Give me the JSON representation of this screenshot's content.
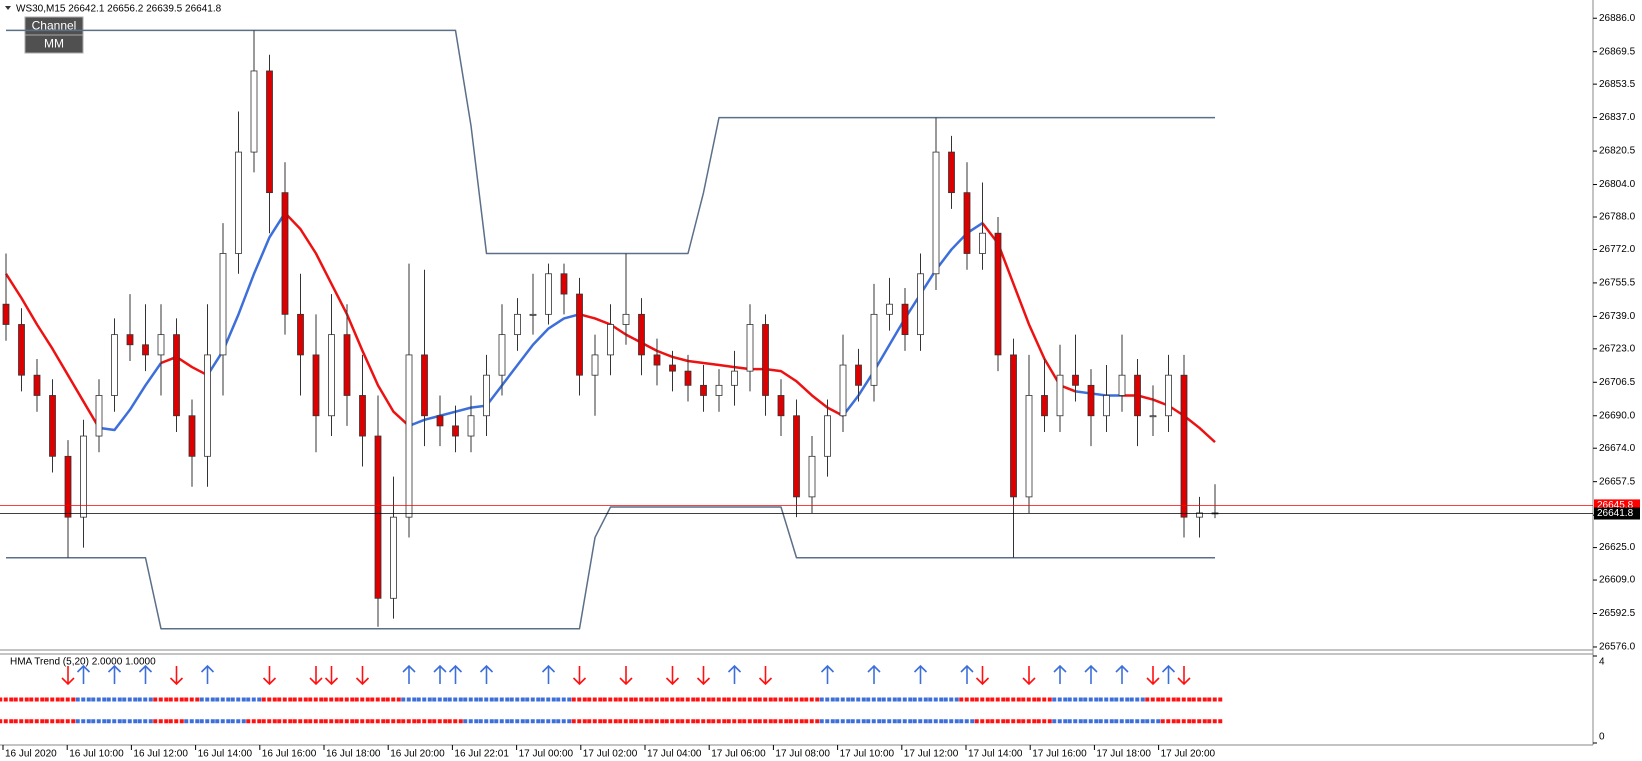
{
  "chart_data": {
    "type": "candlestick",
    "title": "WS30,M15  26642.1 26656.2 26639.5 26641.8",
    "buttons": [
      "Channel",
      "MM"
    ],
    "x_labels": [
      "16 Jul 2020",
      "16 Jul 10:00",
      "16 Jul 12:00",
      "16 Jul 14:00",
      "16 Jul 16:00",
      "16 Jul 18:00",
      "16 Jul 20:00",
      "16 Jul 22:01",
      "17 Jul 00:00",
      "17 Jul 02:00",
      "17 Jul 04:00",
      "17 Jul 06:00",
      "17 Jul 08:00",
      "17 Jul 10:00",
      "17 Jul 12:00",
      "17 Jul 14:00",
      "17 Jul 16:00",
      "17 Jul 18:00",
      "17 Jul 20:00"
    ],
    "ylim": [
      26575,
      26894
    ],
    "yticks": [
      {
        "value": 26886,
        "label": "26886.0"
      },
      {
        "value": 26869.5,
        "label": "26869.5"
      },
      {
        "value": 26853.5,
        "label": "26853.5"
      },
      {
        "value": 26837,
        "label": "26837.0"
      },
      {
        "value": 26820.5,
        "label": "26820.5"
      },
      {
        "value": 26804,
        "label": "26804.0"
      },
      {
        "value": 26788,
        "label": "26788.0"
      },
      {
        "value": 26772,
        "label": "26772.0"
      },
      {
        "value": 26755.5,
        "label": "26755.5"
      },
      {
        "value": 26739,
        "label": "26739.0"
      },
      {
        "value": 26723,
        "label": "26723.0"
      },
      {
        "value": 26706.5,
        "label": "26706.5"
      },
      {
        "value": 26690,
        "label": "26690.0"
      },
      {
        "value": 26674,
        "label": "26674.0"
      },
      {
        "value": 26657.5,
        "label": "26657.5"
      },
      {
        "value": 26641,
        "label": "26641.0"
      },
      {
        "value": 26625,
        "label": "26625.0"
      },
      {
        "value": 26609,
        "label": "26609.0"
      },
      {
        "value": 26592.5,
        "label": "26592.5"
      },
      {
        "value": 26576,
        "label": "26576.0"
      }
    ],
    "up_color": "#ffffff",
    "down_color": "#dd0000",
    "wick_color": "#333333",
    "open": [
      26745,
      26735,
      26710,
      26700,
      26670,
      26640,
      26680,
      26700,
      26730,
      26725,
      26720,
      26730,
      26690,
      26670,
      26720,
      26770,
      26820,
      26860,
      26800,
      26740,
      26720,
      26690,
      26730,
      26700,
      26680,
      26600,
      26640,
      26720,
      26690,
      26685,
      26680,
      26690,
      26710,
      26730,
      26740,
      26740,
      26760,
      26750,
      26710,
      26720,
      26735,
      26740,
      26720,
      26715,
      26712,
      26705,
      26700,
      26705,
      26712,
      26735,
      26700,
      26690,
      26650,
      26670,
      26690,
      26715,
      26705,
      26740,
      26745,
      26730,
      26760,
      26820,
      26800,
      26770,
      26780,
      26720,
      26650,
      26700,
      26690,
      26710,
      26705,
      26690,
      26700,
      26710,
      26690,
      26690,
      26710,
      26640,
      26642.1
    ],
    "high": [
      26770,
      26743,
      26718,
      26708,
      26678,
      26688,
      26708,
      26738,
      26750,
      26745,
      26745,
      26738,
      26698,
      26745,
      26785,
      26840,
      26880,
      26868,
      26815,
      26760,
      26740,
      26750,
      26745,
      26720,
      26700,
      26660,
      26765,
      26762,
      26700,
      26695,
      26700,
      26720,
      26745,
      26748,
      26760,
      26765,
      26765,
      26758,
      26730,
      26745,
      26770,
      26748,
      26728,
      26722,
      26720,
      26715,
      26713,
      26722,
      26745,
      26740,
      26708,
      26698,
      26680,
      26698,
      26730,
      26723,
      26755,
      26758,
      26753,
      26770,
      26837,
      26828,
      26815,
      26805,
      26788,
      26728,
      26720,
      26718,
      26725,
      26730,
      26713,
      26715,
      26730,
      26718,
      26705,
      26720,
      26720,
      26650,
      26656.2
    ],
    "low": [
      26727,
      26702,
      26692,
      26662,
      26620,
      26625,
      26672,
      26692,
      26717,
      26712,
      26700,
      26682,
      26655,
      26655,
      26700,
      26760,
      26810,
      26780,
      26730,
      26700,
      26672,
      26680,
      26685,
      26665,
      26586,
      26590,
      26630,
      26675,
      26675,
      26672,
      26672,
      26680,
      26700,
      26722,
      26730,
      26735,
      26740,
      26700,
      26690,
      26710,
      26725,
      26710,
      26705,
      26702,
      26697,
      26692,
      26692,
      26695,
      26702,
      26690,
      26680,
      26640,
      26642,
      26660,
      26682,
      26697,
      26697,
      26732,
      26722,
      26722,
      26752,
      26792,
      26762,
      26762,
      26712,
      26620,
      26642,
      26682,
      26682,
      26697,
      26675,
      26682,
      26692,
      26675,
      26680,
      26682,
      26630,
      26630,
      26639.5
    ],
    "close": [
      26735,
      26710,
      26700,
      26670,
      26640,
      26680,
      26700,
      26730,
      26725,
      26720,
      26730,
      26690,
      26670,
      26720,
      26770,
      26820,
      26860,
      26800,
      26740,
      26720,
      26690,
      26730,
      26700,
      26680,
      26600,
      26640,
      26720,
      26690,
      26685,
      26680,
      26690,
      26710,
      26730,
      26740,
      26740,
      26760,
      26750,
      26710,
      26720,
      26735,
      26740,
      26720,
      26715,
      26712,
      26705,
      26700,
      26705,
      26712,
      26735,
      26700,
      26690,
      26650,
      26670,
      26690,
      26715,
      26705,
      26740,
      26745,
      26730,
      26760,
      26820,
      26800,
      26770,
      26780,
      26720,
      26650,
      26700,
      26690,
      26710,
      26705,
      26690,
      26700,
      26710,
      26690,
      26690,
      26710,
      26640,
      26642.1,
      26641.8
    ],
    "series": [
      {
        "color": "#5b6f88",
        "width": 1.5,
        "values": [
          26880,
          26880,
          26880,
          26880,
          26880,
          26880,
          26880,
          26880,
          26880,
          26880,
          26880,
          26880,
          26880,
          26880,
          26880,
          26880,
          26880,
          26880,
          26880,
          26880,
          26880,
          26880,
          26880,
          26880,
          26880,
          26880,
          26880,
          26880,
          26880,
          26880,
          26833,
          26770,
          26770,
          26770,
          26770,
          26770,
          26770,
          26770,
          26770,
          26770,
          26770,
          26770,
          26770,
          26770,
          26770,
          26800,
          26837,
          26837,
          26837,
          26837,
          26837,
          26837,
          26837,
          26837,
          26837,
          26837,
          26837,
          26837,
          26837,
          26837,
          26837,
          26837,
          26837,
          26837,
          26837,
          26837,
          26837,
          26837,
          26837,
          26837,
          26837,
          26837,
          26837,
          26837,
          26837,
          26837,
          26837,
          26837,
          26837
        ]
      },
      {
        "color": "#5b6f88",
        "width": 1.5,
        "values": [
          26620,
          26620,
          26620,
          26620,
          26620,
          26620,
          26620,
          26620,
          26620,
          26620,
          26585,
          26585,
          26585,
          26585,
          26585,
          26585,
          26585,
          26585,
          26585,
          26585,
          26585,
          26585,
          26585,
          26585,
          26585,
          26585,
          26585,
          26585,
          26585,
          26585,
          26585,
          26585,
          26585,
          26585,
          26585,
          26585,
          26585,
          26585,
          26630,
          26645,
          26645,
          26645,
          26645,
          26645,
          26645,
          26645,
          26645,
          26645,
          26645,
          26645,
          26645,
          26620,
          26620,
          26620,
          26620,
          26620,
          26620,
          26620,
          26620,
          26620,
          26620,
          26620,
          26620,
          26620,
          26620,
          26620,
          26620,
          26620,
          26620,
          26620,
          26620,
          26620,
          26620,
          26620,
          26620,
          26620,
          26620,
          26620,
          26620
        ]
      },
      {
        "color": "#3d6fdb",
        "width": 2.5,
        "values": [
          null,
          null,
          null,
          null,
          null,
          null,
          26684,
          26683,
          26693,
          26705,
          26716,
          null,
          null,
          26710,
          26722,
          26740,
          26760,
          26778,
          26790,
          null,
          null,
          null,
          null,
          null,
          null,
          null,
          26685,
          26688,
          26690,
          26692,
          26694,
          26695,
          26705,
          26715,
          26725,
          26733,
          26738,
          26740,
          null,
          null,
          null,
          null,
          null,
          null,
          null,
          null,
          null,
          null,
          null,
          null,
          null,
          null,
          null,
          null,
          26690,
          26700,
          26712,
          26725,
          26738,
          26750,
          26762,
          26772,
          26780,
          26785,
          null,
          null,
          null,
          null,
          null,
          26702,
          26701,
          26700,
          26700,
          null,
          null,
          null,
          null,
          null,
          null
        ]
      },
      {
        "color": "#ee1111",
        "width": 2.5,
        "values": [
          26760,
          26748,
          26735,
          26723,
          26710,
          26697,
          26684,
          null,
          null,
          null,
          26716,
          26719,
          26714,
          26710,
          null,
          null,
          null,
          null,
          26790,
          26782,
          26770,
          26755,
          26740,
          26722,
          26705,
          26692,
          26685,
          null,
          null,
          null,
          null,
          null,
          null,
          null,
          null,
          null,
          null,
          26740,
          26738,
          26735,
          26730,
          26726,
          26722,
          26719,
          26717,
          26716,
          26715,
          26714,
          26713,
          26713,
          26712,
          26707,
          26700,
          26694,
          26690,
          null,
          null,
          null,
          null,
          null,
          null,
          null,
          null,
          26785,
          26775,
          26755,
          26735,
          26718,
          26705,
          26702,
          null,
          null,
          26700,
          26700,
          26698,
          26695,
          26690,
          26684,
          26677
        ]
      }
    ],
    "price_lines": [
      {
        "value": 26645.8,
        "color": "#ff0000"
      },
      {
        "value": 26641.8,
        "color": "#000000"
      }
    ],
    "indicator": {
      "title": "HMA Trend (5,20) 2.0000 1.0000",
      "ylim": [
        0,
        4
      ],
      "yticks": [
        4,
        0
      ],
      "up_color": "#3d6fdb",
      "down_color": "#ff1111",
      "rows": [
        {
          "value": 2,
          "trend": [
            "down",
            "down",
            "down",
            "down",
            "down",
            "up",
            "up",
            "up",
            "up",
            "up",
            "down",
            "down",
            "down",
            "up",
            "up",
            "up",
            "up",
            "down",
            "down",
            "down",
            "down",
            "down",
            "down",
            "down",
            "down",
            "down",
            "up",
            "up",
            "up",
            "up",
            "up",
            "up",
            "up",
            "up",
            "up",
            "up",
            "up",
            "down",
            "down",
            "down",
            "down",
            "down",
            "down",
            "down",
            "down",
            "down",
            "down",
            "down",
            "down",
            "down",
            "down",
            "down",
            "down",
            "up",
            "up",
            "up",
            "up",
            "up",
            "up",
            "up",
            "up",
            "up",
            "down",
            "down",
            "down",
            "down",
            "down",
            "down",
            "up",
            "up",
            "up",
            "up",
            "up",
            "up",
            "down",
            "down",
            "down",
            "down",
            "down"
          ]
        },
        {
          "value": 1,
          "trend": [
            "down",
            "down",
            "down",
            "down",
            "down",
            "up",
            "up",
            "up",
            "up",
            "up",
            "down",
            "down",
            "up",
            "up",
            "up",
            "up",
            "down",
            "down",
            "down",
            "down",
            "down",
            "down",
            "down",
            "down",
            "down",
            "down",
            "down",
            "down",
            "down",
            "down",
            "up",
            "up",
            "up",
            "up",
            "up",
            "up",
            "up",
            "down",
            "down",
            "down",
            "down",
            "down",
            "down",
            "down",
            "down",
            "down",
            "down",
            "down",
            "down",
            "down",
            "down",
            "down",
            "down",
            "up",
            "up",
            "up",
            "up",
            "up",
            "up",
            "up",
            "up",
            "up",
            "up",
            "down",
            "down",
            "down",
            "down",
            "down",
            "up",
            "up",
            "up",
            "up",
            "up",
            "up",
            "up",
            "down",
            "down",
            "down",
            "down"
          ]
        }
      ],
      "signals": [
        null,
        null,
        null,
        null,
        "down",
        "up",
        null,
        "up",
        null,
        "up",
        null,
        "down",
        null,
        "up",
        null,
        null,
        null,
        "down",
        null,
        null,
        "down",
        "down",
        null,
        "down",
        null,
        null,
        "up",
        null,
        "up",
        "up",
        null,
        "up",
        null,
        null,
        null,
        "up",
        null,
        "down",
        null,
        null,
        "down",
        null,
        null,
        "down",
        null,
        "down",
        null,
        "up",
        null,
        "down",
        null,
        null,
        null,
        "up",
        null,
        null,
        "up",
        null,
        null,
        "up",
        null,
        null,
        "up",
        "down",
        null,
        null,
        "down",
        null,
        "up",
        null,
        "up",
        null,
        "up",
        null,
        "down",
        "up",
        "down",
        null,
        null
      ]
    }
  }
}
